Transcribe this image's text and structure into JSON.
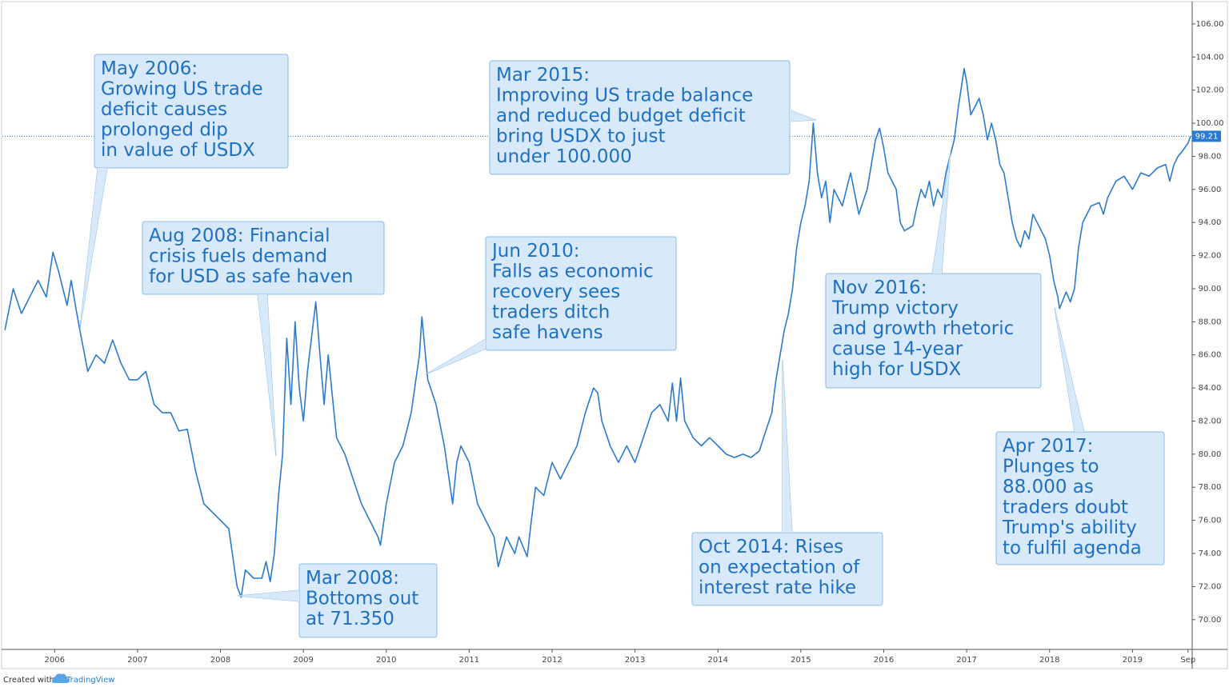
{
  "chart_data": {
    "type": "line",
    "color": "#2a7bd0",
    "grid": false,
    "x": [
      2005.4,
      2005.5,
      2005.6,
      2005.7,
      2005.8,
      2005.9,
      2005.98,
      2006.05,
      2006.1,
      2006.15,
      2006.2,
      2006.25,
      2006.3,
      2006.4,
      2006.5,
      2006.6,
      2006.7,
      2006.8,
      2006.9,
      2007.0,
      2007.1,
      2007.2,
      2007.3,
      2007.4,
      2007.5,
      2007.6,
      2007.7,
      2007.8,
      2007.9,
      2008.0,
      2008.1,
      2008.2,
      2008.25,
      2008.3,
      2008.4,
      2008.5,
      2008.55,
      2008.6,
      2008.65,
      2008.7,
      2008.75,
      2008.8,
      2008.85,
      2008.9,
      2008.95,
      2009.0,
      2009.05,
      2009.15,
      2009.2,
      2009.25,
      2009.3,
      2009.4,
      2009.5,
      2009.6,
      2009.7,
      2009.8,
      2009.9,
      2009.93,
      2010.0,
      2010.1,
      2010.2,
      2010.3,
      2010.4,
      2010.43,
      2010.5,
      2010.6,
      2010.7,
      2010.8,
      2010.85,
      2010.9,
      2011.0,
      2011.1,
      2011.2,
      2011.3,
      2011.35,
      2011.45,
      2011.55,
      2011.6,
      2011.7,
      2011.75,
      2011.8,
      2011.9,
      2012.0,
      2012.1,
      2012.2,
      2012.3,
      2012.4,
      2012.5,
      2012.55,
      2012.6,
      2012.7,
      2012.8,
      2012.9,
      2013.0,
      2013.1,
      2013.2,
      2013.3,
      2013.4,
      2013.45,
      2013.5,
      2013.55,
      2013.6,
      2013.7,
      2013.8,
      2013.9,
      2014.0,
      2014.1,
      2014.2,
      2014.3,
      2014.4,
      2014.5,
      2014.55,
      2014.65,
      2014.7,
      2014.75,
      2014.8,
      2014.85,
      2014.9,
      2014.95,
      2015.0,
      2015.05,
      2015.1,
      2015.15,
      2015.2,
      2015.25,
      2015.3,
      2015.35,
      2015.4,
      2015.5,
      2015.6,
      2015.7,
      2015.8,
      2015.9,
      2015.95,
      2016.0,
      2016.05,
      2016.15,
      2016.2,
      2016.25,
      2016.35,
      2016.4,
      2016.45,
      2016.5,
      2016.55,
      2016.6,
      2016.65,
      2016.7,
      2016.75,
      2016.85,
      2016.9,
      2016.97,
      2017.0,
      2017.05,
      2017.1,
      2017.15,
      2017.2,
      2017.25,
      2017.3,
      2017.35,
      2017.4,
      2017.45,
      2017.5,
      2017.55,
      2017.6,
      2017.65,
      2017.7,
      2017.75,
      2017.8,
      2017.85,
      2017.9,
      2017.95,
      2018.0,
      2018.05,
      2018.1,
      2018.12,
      2018.2,
      2018.25,
      2018.3,
      2018.35,
      2018.4,
      2018.45,
      2018.5,
      2018.6,
      2018.65,
      2018.7,
      2018.8,
      2018.9,
      2019.0,
      2019.05,
      2019.1,
      2019.2,
      2019.3,
      2019.4,
      2019.45,
      2019.5,
      2019.55,
      2019.6,
      2019.67,
      2019.7
    ],
    "values": [
      87.5,
      90,
      88.5,
      89.5,
      90.5,
      89.5,
      92.2,
      91,
      90,
      89,
      90.5,
      89,
      87.6,
      85,
      86,
      85.5,
      86.9,
      85.5,
      84.5,
      84.5,
      85,
      83,
      82.5,
      82.5,
      81.4,
      81.5,
      79,
      77,
      76.5,
      76,
      75.5,
      72,
      71.35,
      73,
      72.5,
      72.5,
      73.5,
      72.3,
      74,
      77.5,
      80,
      87,
      83,
      88,
      84,
      82,
      85,
      89.2,
      86,
      83,
      86,
      81,
      80,
      78.5,
      77,
      76,
      75,
      74.5,
      77,
      79.5,
      80.5,
      82.5,
      86,
      88.3,
      84.5,
      83,
      80.5,
      77,
      79.5,
      80.5,
      79.5,
      77,
      76,
      75,
      73.2,
      75,
      74,
      75,
      73.8,
      76,
      78,
      77.5,
      79.5,
      78.5,
      79.5,
      80.5,
      82.5,
      84,
      83.7,
      82,
      80.5,
      79.5,
      80.5,
      79.5,
      81,
      82.5,
      83,
      82,
      84.3,
      82,
      84.6,
      82,
      81,
      80.5,
      81,
      80.5,
      80,
      79.8,
      80,
      79.8,
      80.2,
      81,
      82.5,
      84.5,
      86,
      87.5,
      88.5,
      90,
      92.5,
      94,
      95,
      96.5,
      100,
      97,
      95.5,
      96.5,
      94,
      96,
      95,
      97,
      94.5,
      96,
      99,
      99.7,
      98.5,
      97,
      96,
      94,
      93.5,
      93.8,
      95,
      96,
      95.5,
      96.5,
      95,
      96,
      95.5,
      97,
      99,
      101,
      103.3,
      102.5,
      100.5,
      101,
      101.5,
      100.5,
      99,
      100,
      99,
      97.5,
      97,
      95.5,
      94,
      93,
      92.5,
      93.5,
      93,
      94.5,
      94,
      93.5,
      93,
      92,
      90.5,
      89.5,
      88.8,
      89.8,
      89.2,
      90,
      92.5,
      94,
      94.5,
      95,
      95.2,
      94.5,
      95.5,
      96.5,
      96.8,
      96,
      96.5,
      97,
      96.8,
      97.3,
      97.5,
      96.5,
      97.5,
      98,
      98.3,
      98.8,
      99.21
    ],
    "xlim": [
      2005.37,
      2019.72
    ],
    "xticks": [
      2006,
      2007,
      2008,
      2009,
      2010,
      2011,
      2012,
      2013,
      2014,
      2015,
      2016,
      2017,
      2018,
      2019,
      {
        "value": 2019.67,
        "label": "Sep"
      }
    ],
    "ylim": [
      68.2,
      107.06
    ],
    "yticks": [
      {
        "value": 70,
        "label": "70.00"
      },
      {
        "value": 72,
        "label": "72.00"
      },
      {
        "value": 74,
        "label": "74.00"
      },
      {
        "value": 76,
        "label": "76.00"
      },
      {
        "value": 78,
        "label": "78.00"
      },
      {
        "value": 80,
        "label": "80.00"
      },
      {
        "value": 82,
        "label": "82.00"
      },
      {
        "value": 84,
        "label": "84.00"
      },
      {
        "value": 86,
        "label": "86.00"
      },
      {
        "value": 88,
        "label": "88.00"
      },
      {
        "value": 90,
        "label": "90.00"
      },
      {
        "value": 92,
        "label": "92.00"
      },
      {
        "value": 94,
        "label": "94.00"
      },
      {
        "value": 96,
        "label": "96.00"
      },
      {
        "value": 98,
        "label": "98.00"
      },
      {
        "value": 100,
        "label": "100.00"
      },
      {
        "value": 102,
        "label": "102.00"
      },
      {
        "value": 104,
        "label": "104.00"
      },
      {
        "value": 106,
        "label": "106.00"
      }
    ],
    "annotations": [
      {
        "lines": [
          "May 2006:",
          "Growing US trade",
          "deficit causes",
          "prolonged dip",
          "in value of USDX"
        ]
      },
      {
        "lines": [
          "Aug 2008: Financial",
          "crisis fuels demand",
          "for USD as safe haven"
        ]
      },
      {
        "lines": [
          "Mar 2008:",
          "Bottoms out",
          "at 71.350"
        ]
      },
      {
        "lines": [
          "Jun 2010:",
          "Falls as economic",
          "recovery sees",
          "traders ditch",
          "safe havens"
        ]
      },
      {
        "lines": [
          "Mar 2015:",
          "Improving US trade balance",
          "and reduced budget deficit",
          "bring USDX to just",
          "under 100.000"
        ]
      },
      {
        "lines": [
          "Nov 2016:",
          "Trump victory",
          "and growth rhetoric",
          "cause 14-year",
          "high for USDX"
        ]
      },
      {
        "lines": [
          "Oct 2014: Rises",
          "on expectation of",
          "interest rate hike"
        ]
      },
      {
        "lines": [
          "Apr 2017:",
          "Plunges to",
          "88.000 as",
          "traders doubt",
          "Trump's ability",
          "to fulfil agenda"
        ]
      }
    ]
  },
  "footer": {
    "created": "Created with",
    "brand": "TradingView"
  }
}
